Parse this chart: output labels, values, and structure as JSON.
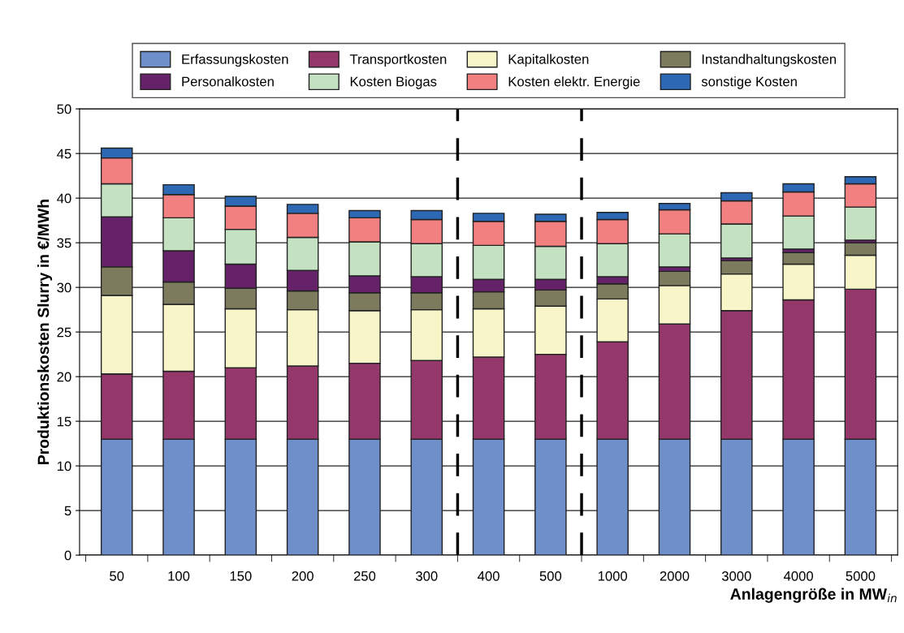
{
  "chart_data": {
    "type": "bar",
    "stacked": true,
    "xlabel": "Anlagengröße in MW$_{in}$",
    "ylabel": "Produktionskosten Slurry in €/MWh",
    "categories": [
      "50",
      "100",
      "150",
      "200",
      "250",
      "300",
      "400",
      "500",
      "1000",
      "2000",
      "3000",
      "4000",
      "5000"
    ],
    "series": [
      {
        "name": "Erfassungskosten",
        "color": "#6f8fcb",
        "values": [
          13,
          13,
          13,
          13,
          13,
          13,
          13,
          13,
          13,
          13,
          13,
          13,
          13
        ]
      },
      {
        "name": "Transportkosten",
        "color": "#94386b",
        "values": [
          7.3,
          7.6,
          8.0,
          8.2,
          8.5,
          8.8,
          9.2,
          9.5,
          10.9,
          12.9,
          14.4,
          15.6,
          16.8
        ]
      },
      {
        "name": "Kapitalkosten",
        "color": "#f8f6c8",
        "values": [
          8.8,
          7.5,
          6.6,
          6.3,
          5.9,
          5.7,
          5.4,
          5.4,
          4.8,
          4.3,
          4.1,
          4.0,
          3.8
        ]
      },
      {
        "name": "Instandhaltungskosten",
        "color": "#7d7b5e",
        "values": [
          3.2,
          2.5,
          2.3,
          2.1,
          2.0,
          1.9,
          1.9,
          1.8,
          1.7,
          1.6,
          1.5,
          1.3,
          1.4
        ]
      },
      {
        "name": "Personalkosten",
        "color": "#652268",
        "values": [
          5.6,
          3.5,
          2.7,
          2.3,
          1.9,
          1.8,
          1.4,
          1.2,
          0.8,
          0.5,
          0.3,
          0.4,
          0.3
        ]
      },
      {
        "name": "Kosten Biogas",
        "color": "#c4e2c2",
        "values": [
          3.7,
          3.7,
          3.9,
          3.7,
          3.8,
          3.7,
          3.8,
          3.7,
          3.7,
          3.7,
          3.8,
          3.7,
          3.7
        ]
      },
      {
        "name": "Kosten elektr. Energie",
        "color": "#f28080",
        "values": [
          2.9,
          2.6,
          2.6,
          2.7,
          2.7,
          2.7,
          2.7,
          2.8,
          2.7,
          2.7,
          2.6,
          2.7,
          2.6
        ]
      },
      {
        "name": "sonstige Kosten",
        "color": "#2c68b4",
        "values": [
          1.1,
          1.1,
          1.1,
          1.0,
          0.8,
          1.0,
          0.9,
          0.8,
          0.8,
          0.7,
          0.9,
          0.9,
          0.8
        ]
      }
    ],
    "ylim": [
      0,
      50
    ],
    "yticks": [
      0,
      5,
      10,
      15,
      20,
      25,
      30,
      35,
      40,
      45,
      50
    ],
    "grid": "y",
    "legend": "top"
  }
}
